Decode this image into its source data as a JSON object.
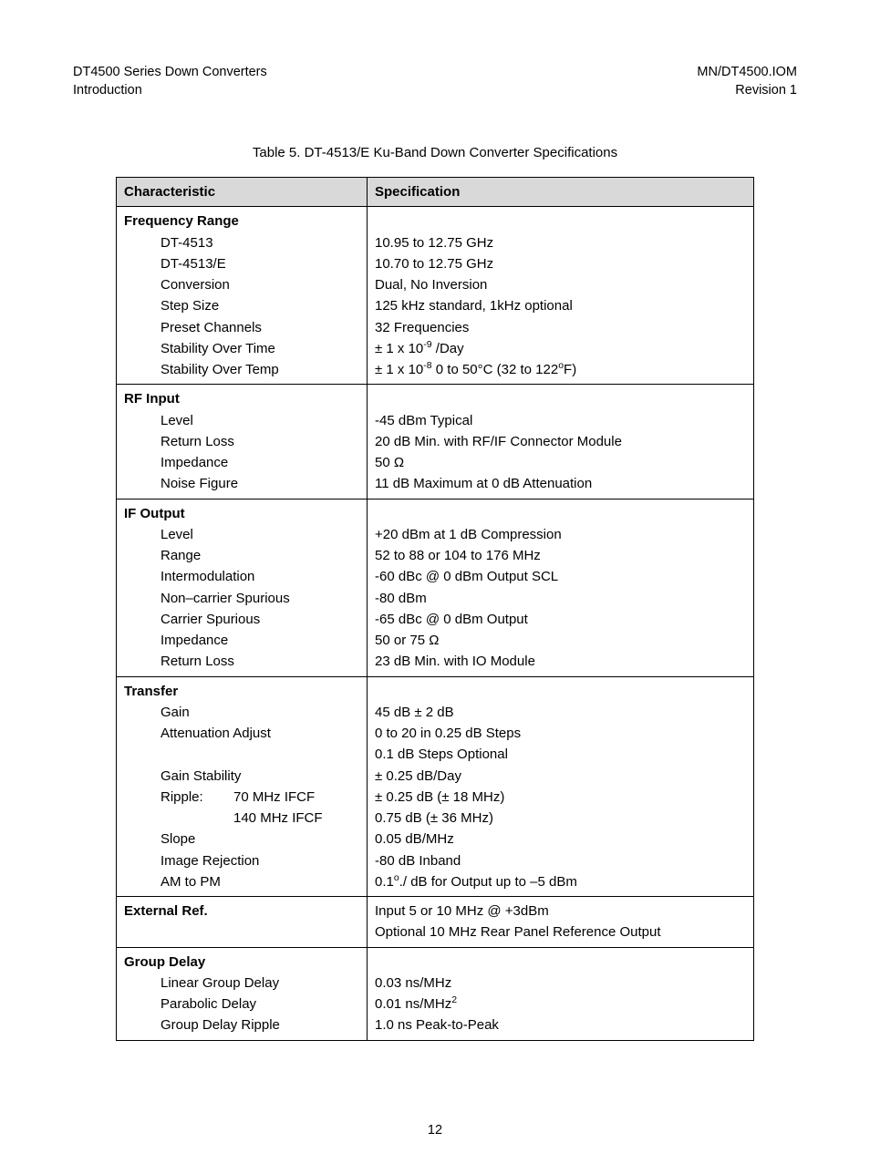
{
  "header": {
    "left_line1": "DT4500 Series Down Converters",
    "left_line2": "Introduction",
    "right_line1": "MN/DT4500.IOM",
    "right_line2": "Revision 1"
  },
  "caption": "Table 5.  DT-4513/E Ku-Band Down Converter Specifications",
  "columns": {
    "h1": "Characteristic",
    "h2": "Specification"
  },
  "sections": {
    "freq": {
      "label": "Frequency Range",
      "l1": "DT-4513",
      "r1": "10.95 to 12.75 GHz",
      "l2": "DT-4513/E",
      "r2": "10.70 to 12.75 GHz",
      "l3": "Conversion",
      "r3": "Dual, No Inversion",
      "l4": "Step Size",
      "r4": "125 kHz standard, 1kHz optional",
      "l5": "Preset Channels",
      "r5": "32 Frequencies",
      "l6": "Stability Over Time",
      "r6_pre": "± 1 x 10",
      "r6_sup": "-9",
      "r6_post": " /Day",
      "l7": "Stability Over Temp",
      "r7_pre": "± 1 x 10",
      "r7_sup": "-8",
      "r7_mid": " 0 to 50°C (32 to 122",
      "r7_sup2": "o",
      "r7_end": "F)"
    },
    "rf": {
      "label": "RF Input",
      "l1": "Level",
      "r1": "-45 dBm Typical",
      "l2": "Return Loss",
      "r2": "20 dB Min. with RF/IF Connector Module",
      "l3": "Impedance",
      "r3": "50 Ω",
      "l4": "Noise Figure",
      "r4": "11 dB Maximum at 0 dB Attenuation"
    },
    "ifout": {
      "label": "IF Output",
      "l1": "Level",
      "r1": "+20 dBm at 1 dB Compression",
      "l2": "Range",
      "r2": "52 to 88 or 104 to 176 MHz",
      "l3": "Intermodulation",
      "r3": "-60 dBc @ 0 dBm Output SCL",
      "l4": "Non–carrier Spurious",
      "r4": "-80 dBm",
      "l5": "Carrier Spurious",
      "r5": "-65 dBc @ 0 dBm Output",
      "l6": "Impedance",
      "r6": "50 or 75 Ω",
      "l7": "Return Loss",
      "r7": "23 dB Min. with IO Module"
    },
    "transfer": {
      "label": "Transfer",
      "l1": "Gain",
      "r1": "45 dB ± 2 dB",
      "l2": "Attenuation Adjust",
      "r2": "0 to 20 in 0.25 dB Steps",
      "r2b": "0.1 dB Steps Optional",
      "l3": "Gain Stability",
      "r3": "± 0.25 dB/Day",
      "l4a": "Ripple:",
      "l4b": "70 MHz IFCF",
      "r4": "± 0.25 dB (± 18 MHz)",
      "l5": "140 MHz IFCF",
      "r5": "0.75 dB (± 36 MHz)",
      "l6": "Slope",
      "r6": "0.05 dB/MHz",
      "l7": "Image Rejection",
      "r7": "-80 dB Inband",
      "l8": "AM to PM",
      "r8_pre": "0.1",
      "r8_sup": "o",
      "r8_post": "./ dB for Output up to –5 dBm"
    },
    "extref": {
      "label": "External Ref.",
      "r1": "Input 5 or 10 MHz @ +3dBm",
      "r2": "Optional 10 MHz Rear Panel Reference Output"
    },
    "gd": {
      "label": "Group Delay",
      "l1": "Linear Group Delay",
      "r1": "0.03 ns/MHz",
      "l2": "Parabolic Delay",
      "r2_pre": "0.01 ns/MHz",
      "r2_sup": "2",
      "l3": "Group Delay Ripple",
      "r3": "1.0 ns Peak-to-Peak"
    }
  },
  "page_number": "12"
}
